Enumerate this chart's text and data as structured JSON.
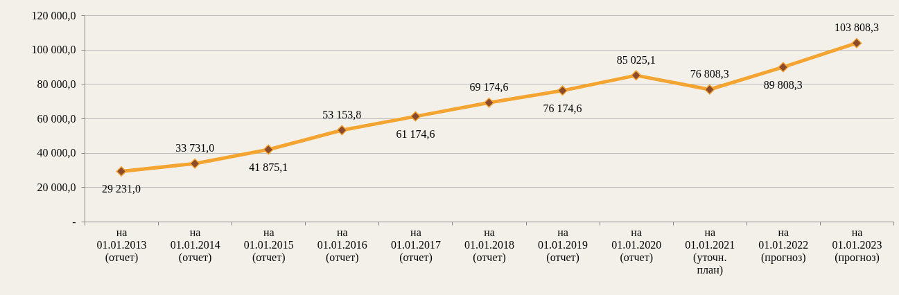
{
  "chart_data": {
    "type": "line",
    "categories": [
      "на\n01.01.2013\n(отчет)",
      "на\n01.01.2014\n(отчет)",
      "на\n01.01.2015\n(отчет)",
      "на\n01.01.2016\n(отчет)",
      "на\n01.01.2017\n(отчет)",
      "на\n01.01.2018\n(отчет)",
      "на\n01.01.2019\n(отчет)",
      "на\n01.01.2020\n(отчет)",
      "на\n01.01.2021\n(уточн.\nплан)",
      "на\n01.01.2022\n(прогноз)",
      "на\n01.01.2023\n(прогноз)"
    ],
    "series": [
      {
        "color": "#f4a430",
        "values": [
          29231.0,
          33731.0,
          41875.1,
          53153.8,
          61174.6,
          69174.6,
          76174.6,
          85025.1,
          76808.3,
          89808.3,
          103808.3
        ],
        "value_labels": [
          "29 231,0",
          "33 731,0",
          "41 875,1",
          "53 153,8",
          "61 174,6",
          "69 174,6",
          "76 174,6",
          "85 025,1",
          "76 808,3",
          "89 808,3",
          "103 808,3"
        ]
      }
    ],
    "ylim": [
      0,
      120000
    ],
    "yticks": [
      {
        "value": 0,
        "label": "-"
      },
      {
        "value": 20000,
        "label": "20 000,0"
      },
      {
        "value": 40000,
        "label": "40 000,0"
      },
      {
        "value": 60000,
        "label": "60 000,0"
      },
      {
        "value": 80000,
        "label": "80 000,0"
      },
      {
        "value": 100000,
        "label": "100 000,0"
      },
      {
        "value": 120000,
        "label": "120 000,0"
      }
    ],
    "grid": "y",
    "marker": "diamond",
    "line_style": "solid"
  }
}
